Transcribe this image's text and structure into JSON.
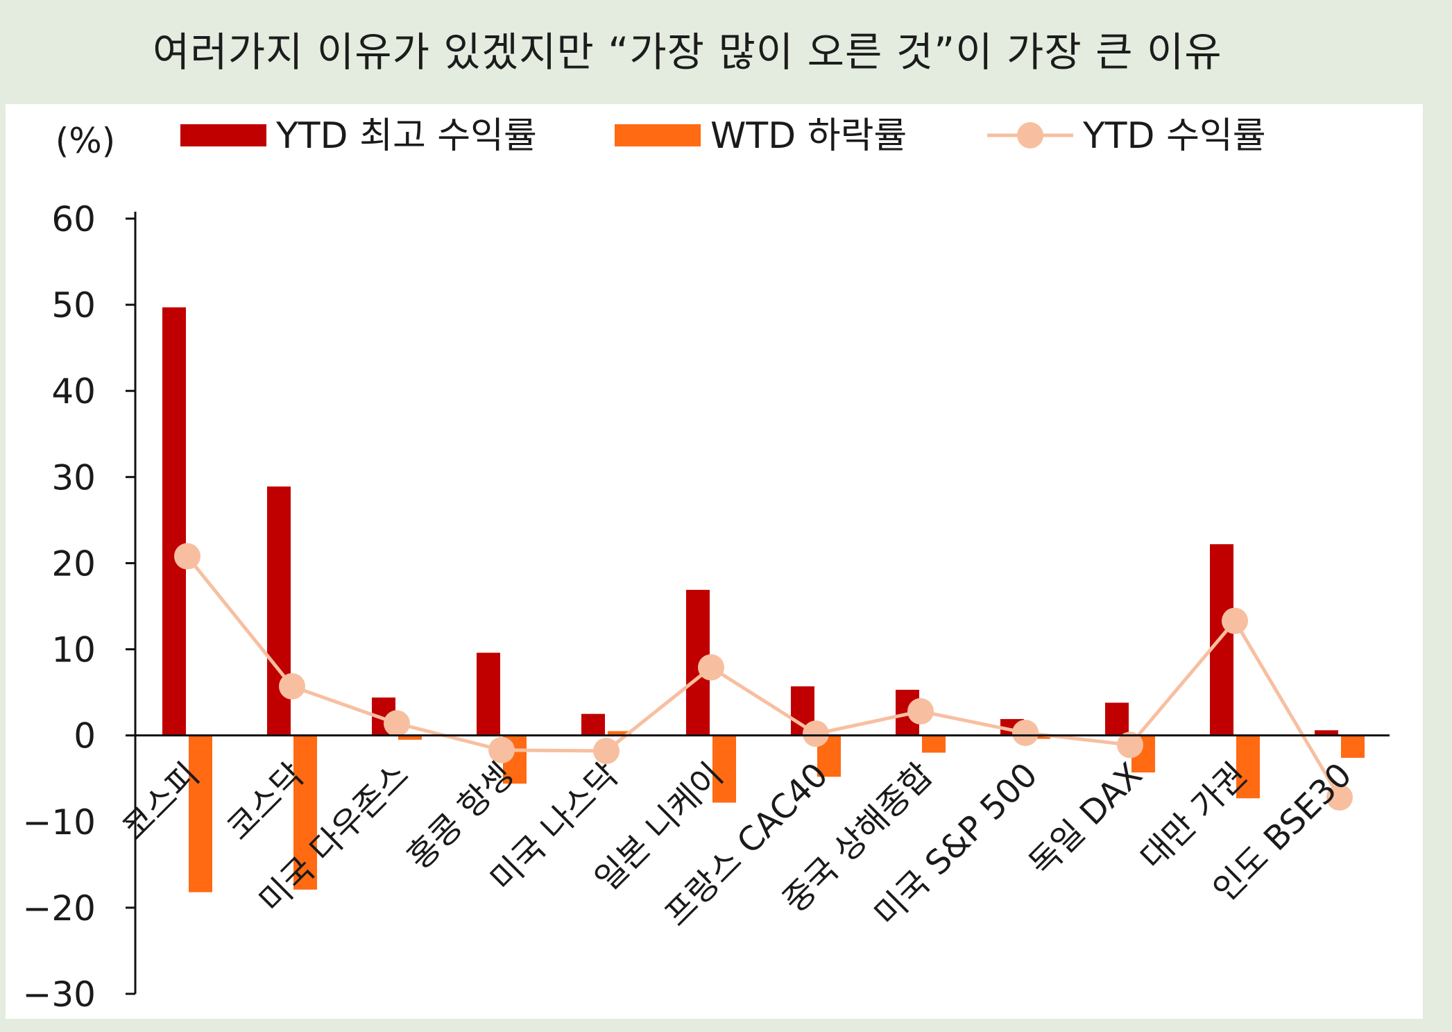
{
  "slide": {
    "title": "여러가지 이유가 있겠지만 “가장 많이 오른 것”이 가장 큰 이유"
  },
  "colors": {
    "ytd_high": "#c00000",
    "wtd_drop": "#ff6a13",
    "ytd_return": "#f7bfa0",
    "background": "#e3ecdf"
  },
  "chart_data": {
    "type": "bar",
    "unit_label": "(%)",
    "ylim": [
      -30,
      60
    ],
    "yticks": [
      60,
      50,
      40,
      30,
      20,
      10,
      0,
      -10,
      -20,
      -30
    ],
    "legend_position": "top",
    "categories": [
      "코스피",
      "코스닥",
      "미국 다우존스",
      "홍콩 항셍",
      "미국 나스닥",
      "일본 니케이",
      "프랑스 CAC40",
      "중국 상해종합",
      "미국 S&P 500",
      "독일 DAX",
      "대만 가권",
      "인도 BSE30"
    ],
    "series": [
      {
        "name": "YTD 최고 수익률",
        "type": "bar",
        "color": "#c00000",
        "values": [
          49.7,
          28.9,
          4.4,
          9.6,
          2.5,
          16.9,
          5.7,
          5.3,
          1.9,
          3.8,
          22.2,
          0.6
        ]
      },
      {
        "name": "WTD 하락률",
        "type": "bar",
        "color": "#ff6a13",
        "values": [
          -18.2,
          -17.9,
          -0.5,
          -5.6,
          0.5,
          -7.8,
          -4.8,
          -2.0,
          -0.4,
          -4.3,
          -7.3,
          -2.6
        ]
      },
      {
        "name": "YTD 수익률",
        "type": "line",
        "color": "#f7bfa0",
        "values": [
          20.8,
          5.7,
          1.4,
          -1.7,
          -1.8,
          7.9,
          0.2,
          2.8,
          0.3,
          -1.1,
          13.3,
          -7.2
        ]
      }
    ]
  }
}
